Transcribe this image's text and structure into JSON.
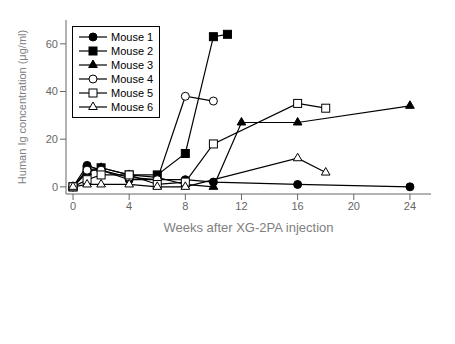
{
  "chart_data": {
    "type": "line",
    "title": "",
    "xlabel": "Weeks after XG-2PA injection",
    "ylabel": "Human Ig concentration (μg/ml)",
    "xlim": [
      -0.5,
      25.5
    ],
    "ylim": [
      -3,
      70
    ],
    "xticks": [
      0,
      4,
      8,
      12,
      16,
      20,
      24
    ],
    "yticks": [
      0,
      20,
      40,
      60
    ],
    "grid": false,
    "legend": "upper left",
    "series": [
      {
        "name": "Mouse 1",
        "color": "black",
        "marker": "filled circle",
        "x": [
          0,
          1,
          2,
          4,
          8,
          10,
          16,
          24
        ],
        "values": [
          0,
          9,
          7,
          3,
          3,
          2,
          1,
          0
        ]
      },
      {
        "name": "Mouse 2",
        "color": "black",
        "marker": "filled square",
        "x": [
          0,
          1,
          2,
          4,
          6,
          8,
          10,
          11
        ],
        "values": [
          0,
          7,
          8,
          5,
          5,
          14,
          63,
          64
        ]
      },
      {
        "name": "Mouse 3",
        "color": "black",
        "marker": "filled triangle",
        "x": [
          0,
          1,
          2,
          4,
          6,
          8,
          10,
          12,
          16,
          24
        ],
        "values": [
          0,
          6,
          8,
          5,
          4,
          1,
          0,
          27,
          27,
          34
        ]
      },
      {
        "name": "Mouse 4",
        "color": "black",
        "marker": "open circle",
        "x": [
          0,
          1,
          2,
          4,
          6,
          8,
          10
        ],
        "values": [
          0,
          7,
          7,
          4,
          3,
          38,
          36
        ]
      },
      {
        "name": "Mouse 5",
        "color": "black",
        "marker": "open square",
        "x": [
          0,
          1,
          2,
          4,
          6,
          8,
          10,
          16,
          18
        ],
        "values": [
          0,
          3,
          5,
          5,
          1,
          2,
          18,
          35,
          33
        ]
      },
      {
        "name": "Mouse 6",
        "color": "black",
        "marker": "open triangle",
        "x": [
          0,
          1,
          2,
          4,
          6,
          8,
          16,
          18
        ],
        "values": [
          0,
          1,
          1,
          1,
          0,
          0,
          12,
          6
        ]
      }
    ]
  }
}
